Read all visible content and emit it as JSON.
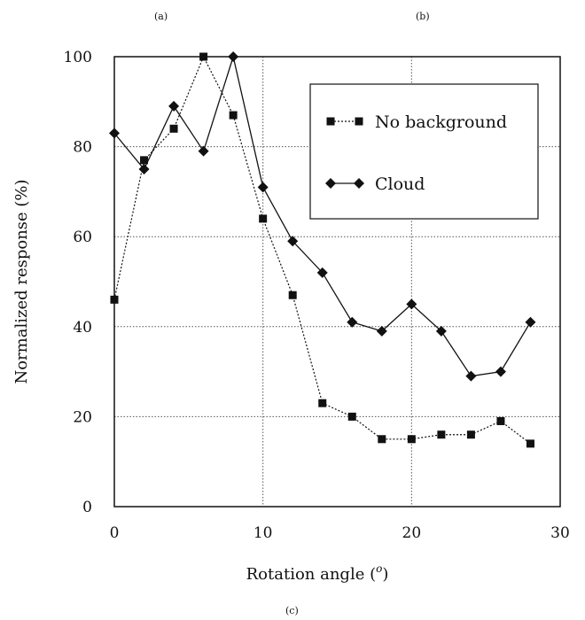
{
  "panels": {
    "a": "(a)",
    "b": "(b)",
    "c": "(c)"
  },
  "chart_data": {
    "type": "line",
    "xlabel": "Rotation angle (",
    "xlabel_sup": "o",
    "xlabel_end": ")",
    "ylabel": "Normalized response (%)",
    "xlim": [
      0,
      30
    ],
    "ylim": [
      0,
      100
    ],
    "xticks": [
      0,
      10,
      20,
      30
    ],
    "yticks": [
      0,
      20,
      40,
      60,
      80,
      100
    ],
    "grid": "dotted",
    "legend_position": "top-right",
    "x": [
      0,
      2,
      4,
      6,
      8,
      10,
      12,
      14,
      16,
      18,
      20,
      22,
      24,
      26,
      28
    ],
    "series": [
      {
        "name": "No background",
        "marker": "square",
        "line": "dotted",
        "values": [
          46,
          77,
          84,
          100,
          87,
          64,
          47,
          23,
          20,
          15,
          15,
          16,
          16,
          19,
          14
        ]
      },
      {
        "name": "Cloud",
        "marker": "diamond",
        "line": "solid",
        "values": [
          83,
          75,
          89,
          79,
          100,
          71,
          59,
          52,
          41,
          39,
          45,
          39,
          29,
          30,
          41
        ]
      }
    ]
  }
}
